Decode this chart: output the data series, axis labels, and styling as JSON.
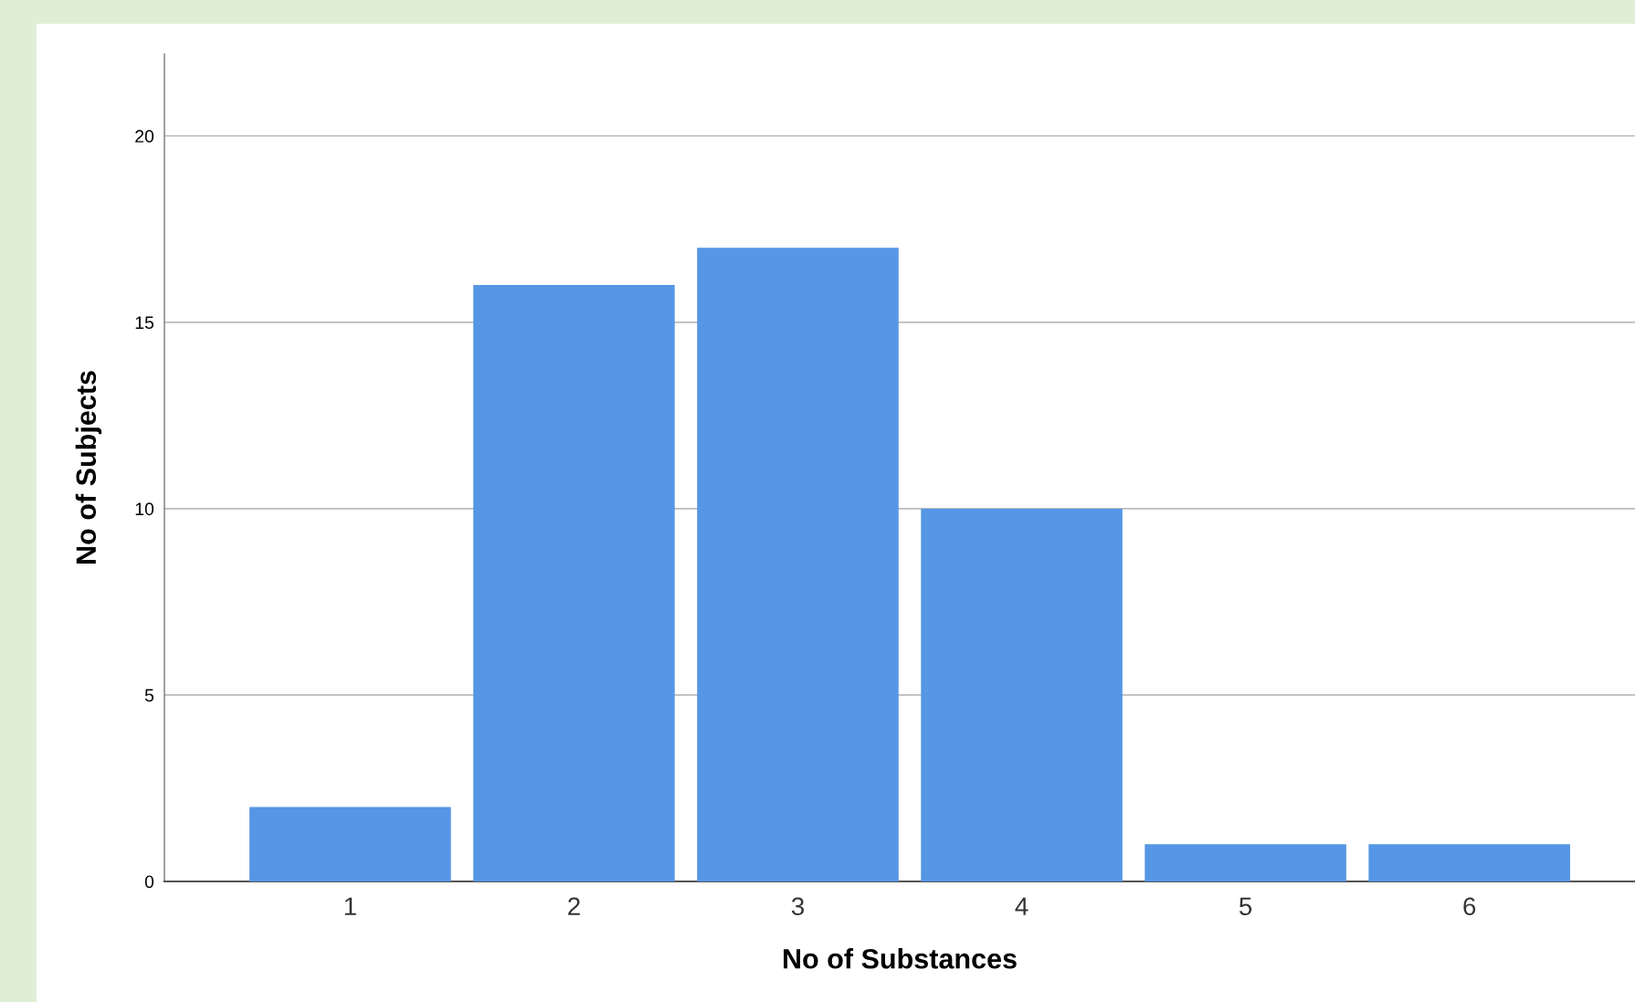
{
  "chart_data": {
    "type": "bar",
    "xlabel": "No of Substances",
    "ylabel": "No of Subjects",
    "categories": [
      "1",
      "2",
      "3",
      "4",
      "5",
      "6"
    ],
    "values": [
      2,
      16,
      17,
      10,
      1,
      1
    ],
    "color": "#5596e5",
    "ylim": [
      0,
      22.2
    ],
    "yticks": [
      0,
      5,
      10,
      15,
      20
    ],
    "grid": "y",
    "legend": false
  }
}
